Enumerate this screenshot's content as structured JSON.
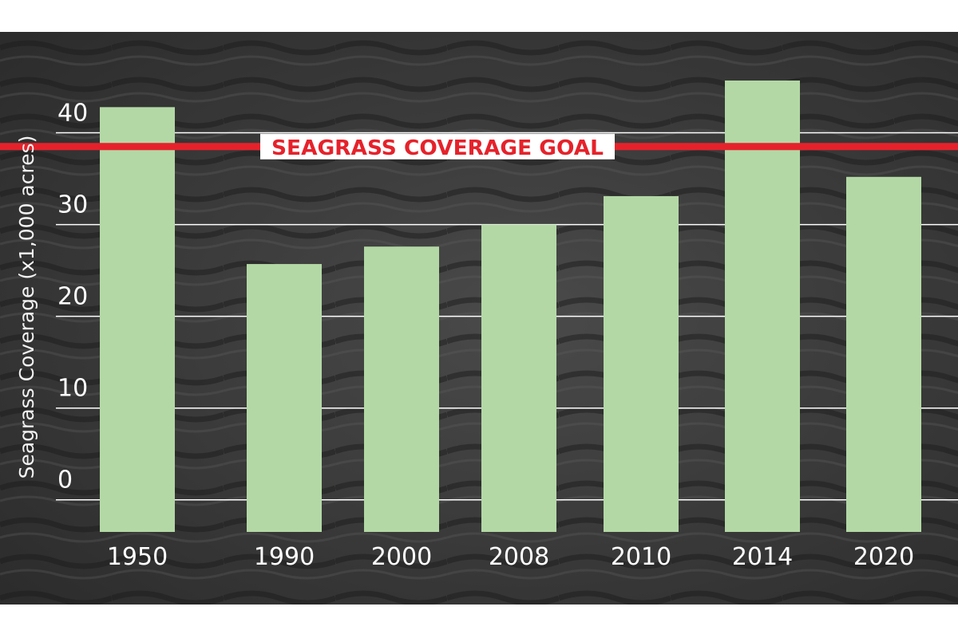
{
  "chart_data": {
    "type": "bar",
    "categories": [
      "1950",
      "1990",
      "2000",
      "2008",
      "2010",
      "2014",
      "2020"
    ],
    "values": [
      42.8,
      25.7,
      27.6,
      30.0,
      33.1,
      45.7,
      35.2
    ],
    "ylabel": "Seagrass Coverage (x1,000 acres)",
    "xlabel": "",
    "yticks": [
      0,
      10,
      20,
      30,
      40
    ],
    "ylim": [
      -3.5,
      51
    ],
    "grid": true,
    "goal": {
      "value": 38.5,
      "label": "SEAGRASS COVERAGE GOAL"
    }
  },
  "colors": {
    "bar": "#b3d8a5",
    "goal_line": "#e5222b",
    "goal_label_bg": "#ffffff",
    "grid": "#ffffff",
    "background": "#3a3a3a"
  }
}
